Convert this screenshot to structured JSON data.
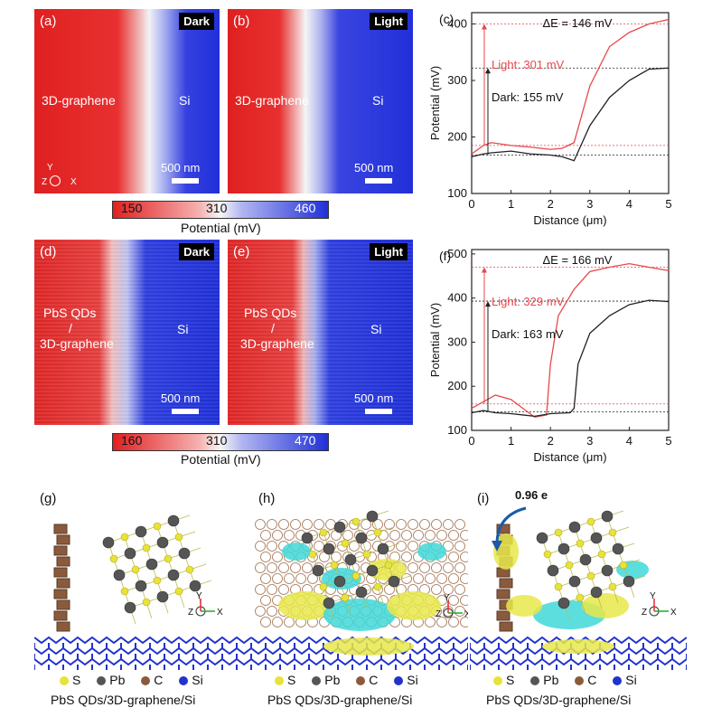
{
  "maps": {
    "a": {
      "panel": "(a)",
      "tag": "Dark",
      "left_label": "3D-graphene",
      "right_label": "Si",
      "scale": "500 nm"
    },
    "b": {
      "panel": "(b)",
      "tag": "Light",
      "left_label": "3D-graphene",
      "right_label": "Si",
      "scale": "500 nm"
    },
    "d": {
      "panel": "(d)",
      "tag": "Dark",
      "left_label_1": "PbS QDs",
      "left_label_2": "/",
      "left_label_3": "3D-graphene",
      "right_label": "Si",
      "scale": "500 nm"
    },
    "e": {
      "panel": "(e)",
      "tag": "Light",
      "left_label_1": "PbS QDs",
      "left_label_2": "/",
      "left_label_3": "3D-graphene",
      "right_label": "Si",
      "scale": "500 nm"
    },
    "axis_y": "Y",
    "axis_z": "Z",
    "axis_x": "X"
  },
  "colorbar_top": {
    "ticks": [
      "150",
      "310",
      "460"
    ],
    "label": "Potential (mV)"
  },
  "colorbar_bottom": {
    "ticks": [
      "160",
      "310",
      "470"
    ],
    "label": "Potential (mV)"
  },
  "chart_data": [
    {
      "panel": "(c)",
      "type": "line",
      "xlabel": "Distance (μm)",
      "ylabel": "Potential (mV)",
      "xlim": [
        0,
        5
      ],
      "ylim": [
        100,
        420
      ],
      "xticks": [
        "0",
        "1",
        "2",
        "3",
        "4",
        "5"
      ],
      "yticks": [
        "100",
        "200",
        "300",
        "400"
      ],
      "annotation_delta": "ΔE = 146 mV",
      "annotation_light": "Light: 301 mV",
      "annotation_dark": "Dark: 155 mV",
      "series": [
        {
          "color": "#e8474b",
          "x": [
            0,
            0.3,
            0.5,
            1,
            1.5,
            2,
            2.3,
            2.6,
            3,
            3.5,
            4,
            4.5,
            5
          ],
          "y": [
            170,
            185,
            190,
            185,
            182,
            178,
            180,
            190,
            290,
            360,
            385,
            400,
            408
          ]
        },
        {
          "color": "#222222",
          "x": [
            0,
            0.3,
            0.5,
            1,
            1.5,
            2,
            2.3,
            2.6,
            3,
            3.5,
            4,
            4.5,
            5
          ],
          "y": [
            165,
            170,
            172,
            175,
            170,
            168,
            165,
            158,
            220,
            270,
            300,
            320,
            322
          ]
        }
      ],
      "ref_lines": [
        {
          "y": 400,
          "color": "#e8474b"
        },
        {
          "y": 322,
          "color": "#222222"
        },
        {
          "y": 185,
          "color": "#e8474b"
        },
        {
          "y": 168,
          "color": "#222222"
        }
      ]
    },
    {
      "panel": "(f)",
      "type": "line",
      "xlabel": "Distance (μm)",
      "ylabel": "Potential (mV)",
      "xlim": [
        0,
        5
      ],
      "ylim": [
        100,
        510
      ],
      "xticks": [
        "0",
        "1",
        "2",
        "3",
        "4",
        "5"
      ],
      "yticks": [
        "100",
        "200",
        "300",
        "400",
        "500"
      ],
      "annotation_delta": "ΔE = 166 mV",
      "annotation_light": "Light: 329 mV",
      "annotation_dark": "Dark: 163 mV",
      "series": [
        {
          "color": "#e8474b",
          "x": [
            0,
            0.3,
            0.6,
            1,
            1.3,
            1.6,
            1.9,
            2.0,
            2.2,
            2.6,
            3,
            3.5,
            4,
            4.5,
            5
          ],
          "y": [
            150,
            165,
            180,
            170,
            150,
            130,
            135,
            250,
            360,
            420,
            460,
            470,
            478,
            470,
            462
          ]
        },
        {
          "color": "#222222",
          "x": [
            0,
            0.3,
            0.6,
            1,
            1.3,
            1.6,
            2.0,
            2.5,
            2.6,
            2.7,
            3,
            3.5,
            4,
            4.5,
            5
          ],
          "y": [
            140,
            145,
            140,
            138,
            135,
            132,
            138,
            140,
            150,
            250,
            320,
            360,
            385,
            395,
            392
          ]
        }
      ],
      "ref_lines": [
        {
          "y": 470,
          "color": "#e8474b"
        },
        {
          "y": 393,
          "color": "#222222"
        },
        {
          "y": 160,
          "color": "#e8474b"
        },
        {
          "y": 142,
          "color": "#222222"
        }
      ]
    }
  ],
  "structures": {
    "g": {
      "panel": "(g)",
      "caption": "PbS QDs/3D-graphene/Si"
    },
    "h": {
      "panel": "(h)",
      "caption": "PbS QDs/3D-graphene/Si"
    },
    "i": {
      "panel": "(i)",
      "caption": "PbS QDs/3D-graphene/Si",
      "charge": "0.96 e"
    },
    "legend": [
      {
        "sym": "S",
        "color": "#e8e23a"
      },
      {
        "sym": "Pb",
        "color": "#555555"
      },
      {
        "sym": "C",
        "color": "#8b5a3c"
      },
      {
        "sym": "Si",
        "color": "#2233cc"
      }
    ]
  }
}
